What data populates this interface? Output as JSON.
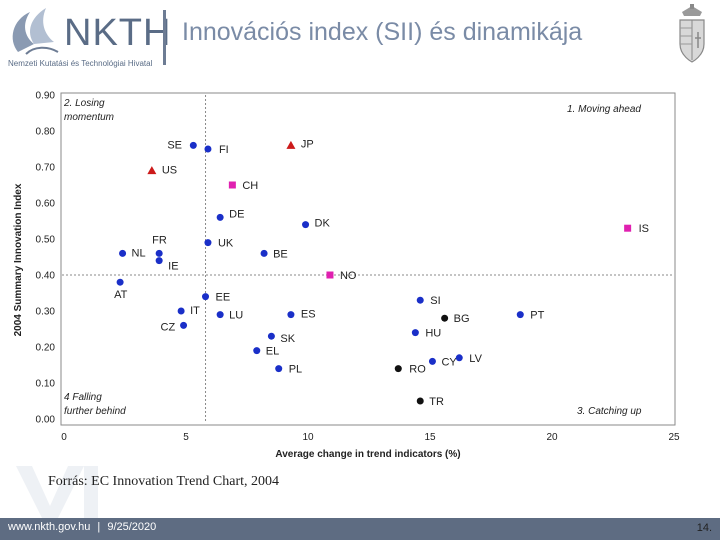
{
  "header": {
    "logo_name": "NKTH",
    "logo_sub": "Nemzeti Kutatási és Technológiai Hivatal",
    "title": "Innovációs index (SII) és dinamikája"
  },
  "chart_data": {
    "type": "scatter",
    "title": "",
    "xlabel": "Average change in trend indicators (%)",
    "ylabel": "2004 Summary Innovation Index",
    "xlim": [
      0,
      25
    ],
    "ylim": [
      0,
      0.9
    ],
    "xticks": [
      "0",
      "5",
      "10",
      "15",
      "20",
      "25"
    ],
    "yticks": [
      "0.00",
      "0.10",
      "0.20",
      "0.30",
      "0.40",
      "0.50",
      "0.60",
      "0.70",
      "0.80",
      "0.90"
    ],
    "reference_lines": {
      "x": 5.8,
      "y": 0.4
    },
    "quadrant_labels": [
      "2. Losing momentum",
      "1. Moving ahead",
      "4 Falling further behind",
      "3. Catching up"
    ],
    "colors": {
      "member": "#1a2fc8",
      "us_jp": "#cc1a1a",
      "efta": "#e020b0",
      "candidate": "#111111"
    },
    "points": [
      {
        "label": "SE",
        "x": 5.3,
        "y": 0.76,
        "group": "member"
      },
      {
        "label": "FI",
        "x": 5.9,
        "y": 0.75,
        "group": "member"
      },
      {
        "label": "JP",
        "x": 9.3,
        "y": 0.76,
        "group": "us_jp"
      },
      {
        "label": "US",
        "x": 3.6,
        "y": 0.69,
        "group": "us_jp"
      },
      {
        "label": "CH",
        "x": 6.9,
        "y": 0.65,
        "group": "efta"
      },
      {
        "label": "DE",
        "x": 6.4,
        "y": 0.56,
        "group": "member"
      },
      {
        "label": "DK",
        "x": 9.9,
        "y": 0.54,
        "group": "member"
      },
      {
        "label": "IS",
        "x": 23.1,
        "y": 0.53,
        "group": "efta"
      },
      {
        "label": "FR",
        "x": 3.9,
        "y": 0.46,
        "group": "member"
      },
      {
        "label": "NL",
        "x": 2.4,
        "y": 0.46,
        "group": "member"
      },
      {
        "label": "UK",
        "x": 5.9,
        "y": 0.49,
        "group": "member"
      },
      {
        "label": "IE",
        "x": 3.9,
        "y": 0.44,
        "group": "member"
      },
      {
        "label": "BE",
        "x": 8.2,
        "y": 0.46,
        "group": "member"
      },
      {
        "label": "NO",
        "x": 10.9,
        "y": 0.4,
        "group": "efta"
      },
      {
        "label": "AT",
        "x": 2.3,
        "y": 0.38,
        "group": "member"
      },
      {
        "label": "EE",
        "x": 5.8,
        "y": 0.34,
        "group": "member"
      },
      {
        "label": "SI",
        "x": 14.6,
        "y": 0.33,
        "group": "member"
      },
      {
        "label": "IT",
        "x": 4.8,
        "y": 0.3,
        "group": "member"
      },
      {
        "label": "LU",
        "x": 6.4,
        "y": 0.29,
        "group": "member"
      },
      {
        "label": "ES",
        "x": 9.3,
        "y": 0.29,
        "group": "member"
      },
      {
        "label": "PT",
        "x": 18.7,
        "y": 0.29,
        "group": "member"
      },
      {
        "label": "BG",
        "x": 15.6,
        "y": 0.28,
        "group": "candidate"
      },
      {
        "label": "CZ",
        "x": 4.9,
        "y": 0.26,
        "group": "member"
      },
      {
        "label": "HU",
        "x": 14.4,
        "y": 0.24,
        "group": "member"
      },
      {
        "label": "SK",
        "x": 8.5,
        "y": 0.23,
        "group": "member"
      },
      {
        "label": "EL",
        "x": 7.9,
        "y": 0.19,
        "group": "member"
      },
      {
        "label": "CY",
        "x": 15.1,
        "y": 0.16,
        "group": "member"
      },
      {
        "label": "LV",
        "x": 16.2,
        "y": 0.17,
        "group": "member"
      },
      {
        "label": "RO",
        "x": 13.7,
        "y": 0.14,
        "group": "candidate"
      },
      {
        "label": "PL",
        "x": 8.8,
        "y": 0.14,
        "group": "member"
      },
      {
        "label": "TR",
        "x": 14.6,
        "y": 0.05,
        "group": "candidate"
      }
    ]
  },
  "source": "Forrás: EC Innovation Trend Chart, 2004",
  "footer": {
    "url": "www.nkth.gov.hu",
    "separator": "|",
    "date": "9/25/2020",
    "page": "14."
  }
}
